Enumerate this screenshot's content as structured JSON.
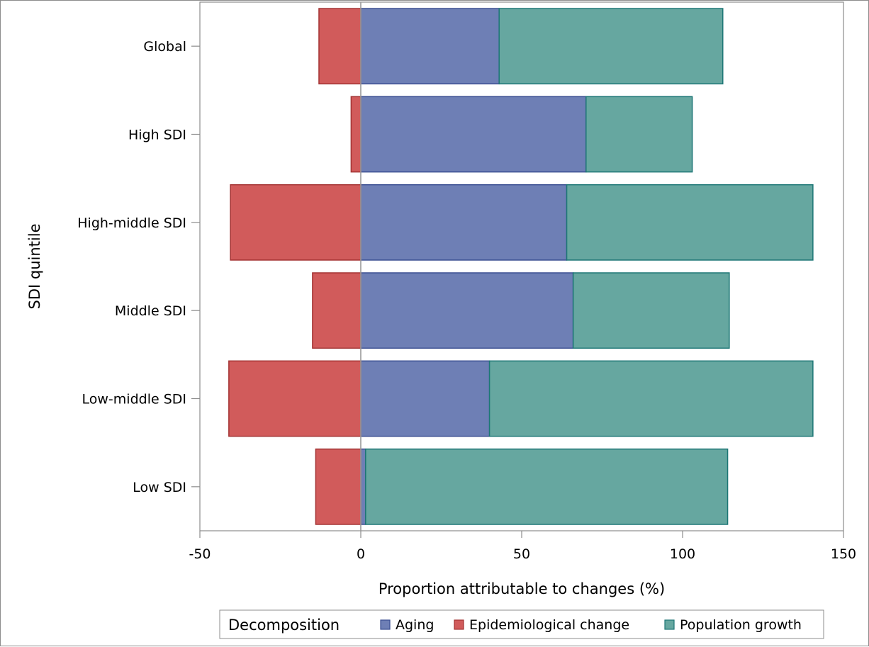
{
  "chart_data": {
    "type": "bar",
    "orientation": "horizontal",
    "stacked": true,
    "title": "",
    "xlabel": "Proportion attributable to changes (%)",
    "ylabel": "SDI quintile",
    "xlim": [
      -50,
      150
    ],
    "xticks": [
      -50,
      0,
      50,
      100,
      150
    ],
    "xtick_labels": [
      "-50",
      "0",
      "50",
      "100",
      "150"
    ],
    "grid": false,
    "categories": [
      "Global",
      "High SDI",
      "High-middle SDI",
      "Middle SDI",
      "Low-middle SDI",
      "Low SDI"
    ],
    "series": [
      {
        "name": "Aging",
        "color": "#6e7fb5",
        "stroke": "#3a4e91",
        "values": [
          43,
          70,
          64,
          66,
          40,
          1.5
        ]
      },
      {
        "name": "Epidemiological change",
        "color": "#d15b5b",
        "stroke": "#a33333",
        "values": [
          -13,
          -3,
          -40.5,
          -15,
          -41,
          -14
        ]
      },
      {
        "name": "Population growth",
        "color": "#66a7a0",
        "stroke": "#1d7675",
        "values": [
          69.5,
          33,
          76.5,
          48.5,
          100.5,
          112.5
        ]
      }
    ],
    "legend": {
      "title": "Decomposition",
      "position": "bottom",
      "entries": [
        "Aging",
        "Epidemiological change",
        "Population growth"
      ]
    }
  }
}
